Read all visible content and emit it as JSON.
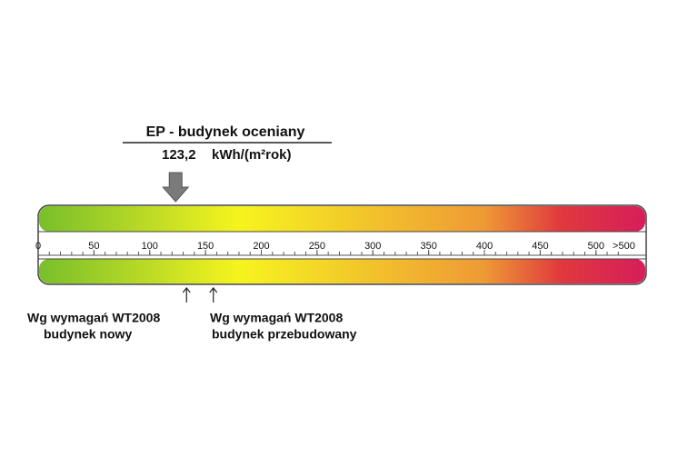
{
  "chart_data": {
    "type": "scale",
    "title": "EP - budynek oceniany",
    "marker": {
      "value": 123.2,
      "value_label": "123,2",
      "unit": "kWh/(m²rok)"
    },
    "xlim": [
      0,
      545
    ],
    "xticks": [
      0,
      50,
      100,
      150,
      200,
      250,
      300,
      350,
      400,
      450,
      500,
      {
        "value": 525,
        "label": ">500"
      }
    ],
    "minor_tick_interval": 10,
    "gradient": [
      {
        "value": 0,
        "color": "#78bf2a"
      },
      {
        "value": 90,
        "color": "#b7d826"
      },
      {
        "value": 180,
        "color": "#f6f41e"
      },
      {
        "value": 300,
        "color": "#f2c22c"
      },
      {
        "value": 400,
        "color": "#ee9a35"
      },
      {
        "value": 470,
        "color": "#e0383e"
      },
      {
        "value": 545,
        "color": "#d61e5a"
      }
    ],
    "annotations": [
      {
        "value": 133,
        "lines": [
          "Wg wymagań WT2008",
          "budynek nowy"
        ]
      },
      {
        "value": 157,
        "lines": [
          "Wg wymagań WT2008",
          "budynek przebudowany"
        ]
      }
    ]
  }
}
